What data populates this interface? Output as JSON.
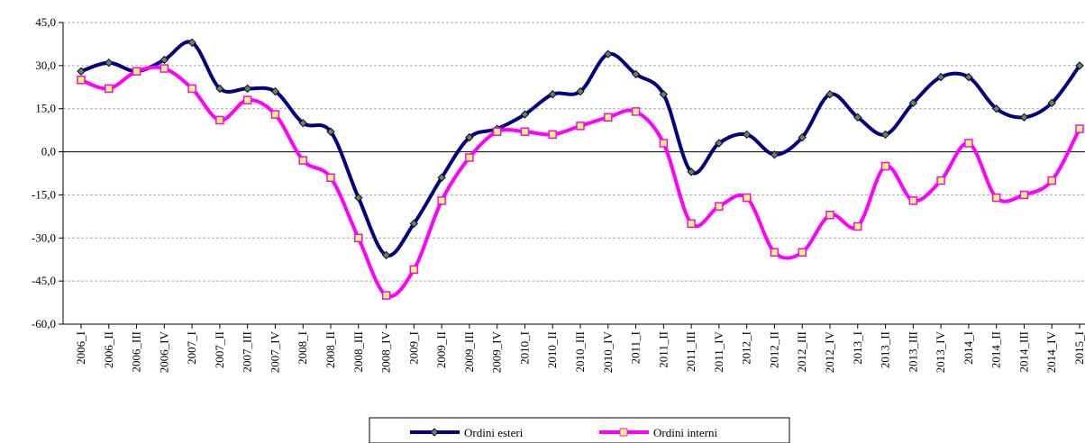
{
  "chart_data": {
    "type": "line",
    "categories": [
      "2006_I",
      "2006_II",
      "2006_III",
      "2006_IV",
      "2007_I",
      "2007_II",
      "2007_III",
      "2007_IV",
      "2008_I",
      "2008_II",
      "2008_III",
      "2008_IV",
      "2009_I",
      "2009_II",
      "2009_III",
      "2009_IV",
      "2010_I",
      "2010_II",
      "2010_III",
      "2010_IV",
      "2011_I",
      "2011_II",
      "2011_III",
      "2011_IV",
      "2012_I",
      "2012_II",
      "2012_III",
      "2012_IV",
      "2013_I",
      "2013_II",
      "2013_III",
      "2013_IV",
      "2014_I",
      "2014_II",
      "2014_III",
      "2014_IV",
      "2015_I"
    ],
    "series": [
      {
        "name": "Ordini esteri",
        "color": "#000080",
        "marker_color": "#6b8e23",
        "values": [
          28,
          31,
          28,
          32,
          38,
          22,
          22,
          21,
          10,
          7,
          -16,
          -36,
          -25,
          -9,
          5,
          8,
          13,
          20,
          21,
          34,
          27,
          20,
          -7,
          3,
          6,
          -1,
          5,
          20,
          12,
          6,
          17,
          26,
          26,
          15,
          12,
          17,
          30
        ]
      },
      {
        "name": "Ordini interni",
        "color": "#ff00ff",
        "marker_color": "#ffff66",
        "values": [
          25,
          22,
          28,
          29,
          22,
          11,
          18,
          13,
          -3,
          -9,
          -30,
          -50,
          -41,
          -17,
          -2,
          7,
          7,
          6,
          9,
          12,
          14,
          3,
          -25,
          -19,
          -16,
          -35,
          -35,
          -22,
          -26,
          -5,
          -17,
          -10,
          3,
          -16,
          -15,
          -10,
          8
        ]
      }
    ],
    "ylim": [
      -60,
      45
    ],
    "yticks": [
      {
        "value": -60,
        "label": "-60,0"
      },
      {
        "value": -45,
        "label": "-45,0"
      },
      {
        "value": -30,
        "label": "-30,0"
      },
      {
        "value": -15,
        "label": "-15,0"
      },
      {
        "value": 0,
        "label": "0,0"
      },
      {
        "value": 15,
        "label": "15,0"
      },
      {
        "value": 30,
        "label": "30,0"
      },
      {
        "value": 45,
        "label": "45,0"
      }
    ],
    "grid": true
  }
}
